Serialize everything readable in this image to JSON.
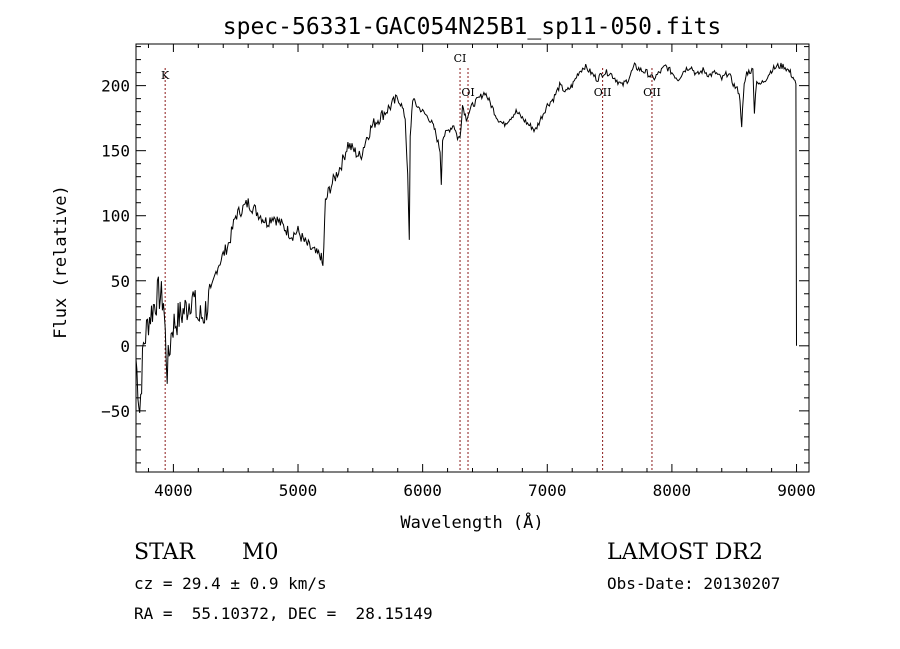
{
  "chart_data": {
    "type": "line",
    "title": "spec-56331-GAC054N25B1_sp11-050.fits",
    "xlabel": "Wavelength (Å)",
    "ylabel": "Flux (relative)",
    "xlim": [
      3700,
      9100
    ],
    "ylim": [
      -97,
      232
    ],
    "x_ticks": [
      4000,
      5000,
      6000,
      7000,
      8000,
      9000
    ],
    "y_ticks": [
      -50,
      0,
      50,
      100,
      150,
      200
    ],
    "grid": false,
    "line_color": "#000000",
    "marker_color": "#8b1a1a",
    "series": [
      {
        "x": [
          3700,
          3730,
          3760,
          3800,
          3840,
          3880,
          3920,
          3950,
          3990,
          4030,
          4070,
          4110,
          4150,
          4200,
          4250,
          4300,
          4350,
          4400,
          4450,
          4500,
          4550,
          4600,
          4650,
          4700,
          4750,
          4800,
          4850,
          4900,
          4950,
          5000,
          5050,
          5100,
          5150,
          5180,
          5200,
          5220,
          5250,
          5300,
          5350,
          5400,
          5450,
          5500,
          5550,
          5600,
          5650,
          5700,
          5750,
          5800,
          5830,
          5860,
          5880,
          5893,
          5900,
          5920,
          5950,
          6000,
          6050,
          6080,
          6100,
          6140,
          6150,
          6160,
          6200,
          6250,
          6280,
          6300,
          6320,
          6350,
          6400,
          6450,
          6500,
          6550,
          6600,
          6650,
          6700,
          6750,
          6800,
          6850,
          6880,
          6900,
          6950,
          7000,
          7050,
          7100,
          7150,
          7200,
          7250,
          7300,
          7350,
          7400,
          7450,
          7500,
          7550,
          7600,
          7650,
          7700,
          7750,
          7800,
          7850,
          7900,
          7950,
          8000,
          8050,
          8100,
          8150,
          8200,
          8250,
          8300,
          8350,
          8400,
          8450,
          8500,
          8540,
          8560,
          8580,
          8600,
          8650,
          8662,
          8680,
          8700,
          8750,
          8800,
          8850,
          8900,
          8950,
          8980,
          8995,
          9000
        ],
        "values": [
          -10,
          -50,
          0,
          20,
          30,
          40,
          35,
          -20,
          15,
          20,
          25,
          30,
          40,
          20,
          25,
          40,
          60,
          70,
          80,
          100,
          105,
          110,
          105,
          100,
          95,
          100,
          95,
          90,
          85,
          88,
          80,
          75,
          70,
          70,
          60,
          110,
          120,
          130,
          140,
          155,
          150,
          145,
          160,
          170,
          175,
          180,
          185,
          190,
          185,
          175,
          130,
          80,
          160,
          190,
          185,
          180,
          175,
          170,
          165,
          150,
          125,
          160,
          165,
          170,
          160,
          160,
          185,
          175,
          185,
          190,
          195,
          185,
          175,
          170,
          175,
          180,
          175,
          170,
          168,
          165,
          175,
          185,
          190,
          200,
          195,
          200,
          210,
          215,
          210,
          205,
          210,
          210,
          205,
          200,
          205,
          215,
          212,
          210,
          205,
          210,
          215,
          210,
          205,
          212,
          215,
          208,
          212,
          208,
          210,
          205,
          210,
          200,
          195,
          170,
          200,
          210,
          212,
          180,
          205,
          200,
          205,
          212,
          215,
          215,
          210,
          205,
          200,
          0
        ]
      }
    ],
    "line_markers": [
      {
        "label": "K",
        "x": 3934
      },
      {
        "label": "CI",
        "x": 6300
      },
      {
        "label": "OI",
        "x": 6364
      },
      {
        "label": "OII",
        "x": 7444
      },
      {
        "label": "OII",
        "x": 7840
      }
    ]
  },
  "info": {
    "class_label": "STAR",
    "subclass_label": "M0",
    "survey_label": "LAMOST DR2",
    "cz_text": "cz = 29.4 ± 0.9 km/s",
    "obs_date_text": "Obs-Date: 20130207",
    "radec_text": "RA =  55.10372, DEC =  28.15149"
  }
}
